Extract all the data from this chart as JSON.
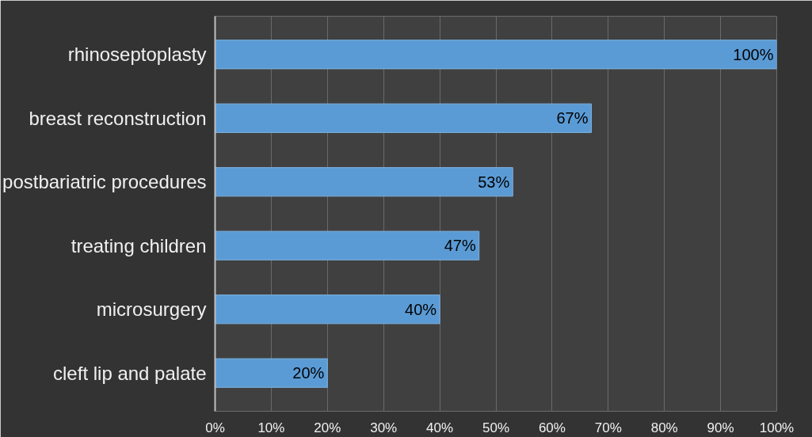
{
  "chart_data": {
    "type": "bar",
    "orientation": "horizontal",
    "categories": [
      "rhinoseptoplasty",
      "breast reconstruction",
      "postbariatric procedures",
      "treating children",
      "microsurgery",
      "cleft lip and palate"
    ],
    "values": [
      100,
      67,
      53,
      47,
      40,
      20
    ],
    "value_labels": [
      "100%",
      "67%",
      "53%",
      "47%",
      "40%",
      "20%"
    ],
    "color": "#5b9bd5",
    "xlim": [
      0,
      100
    ],
    "xticks": [
      {
        "value": 0,
        "label": "0%"
      },
      {
        "value": 10,
        "label": "10%"
      },
      {
        "value": 20,
        "label": "20%"
      },
      {
        "value": 30,
        "label": "30%"
      },
      {
        "value": 40,
        "label": "40%"
      },
      {
        "value": 50,
        "label": "50%"
      },
      {
        "value": 60,
        "label": "60%"
      },
      {
        "value": 70,
        "label": "70%"
      },
      {
        "value": 80,
        "label": "80%"
      },
      {
        "value": 90,
        "label": "90%"
      },
      {
        "value": 100,
        "label": "100%"
      }
    ],
    "grid": "x"
  }
}
